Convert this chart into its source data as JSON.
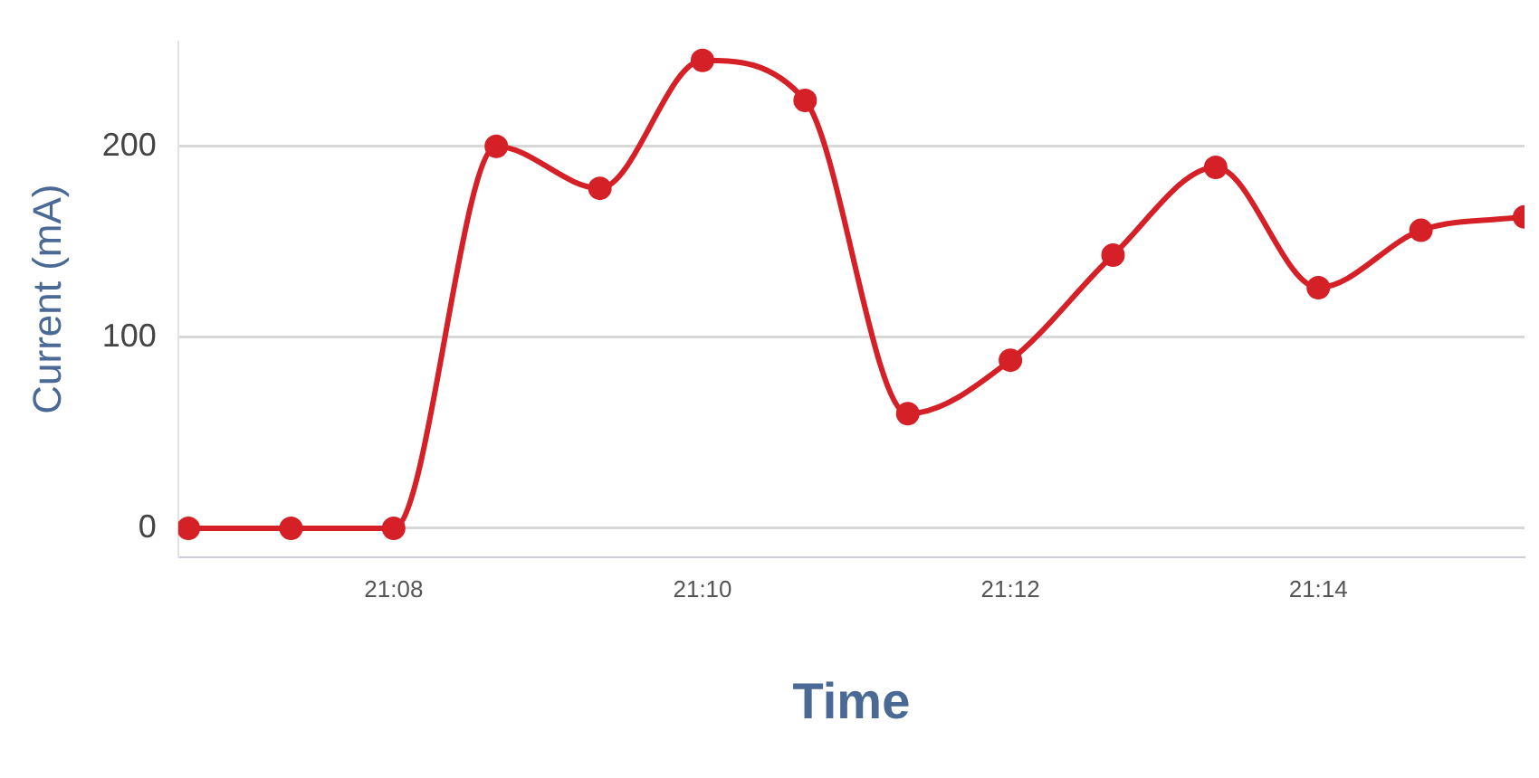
{
  "chart_data": {
    "type": "line",
    "xlabel": "Time",
    "ylabel": "Current (mA)",
    "x": [
      21.1111,
      21.1222,
      21.1333,
      21.1444,
      21.1556,
      21.1667,
      21.1778,
      21.1889,
      21.2,
      21.2111,
      21.2222,
      21.2333,
      21.2444,
      21.2556
    ],
    "series": [
      {
        "color": "#d42026",
        "values": [
          0,
          0,
          0,
          200,
          178,
          245,
          224,
          60,
          88,
          143,
          189,
          126,
          156,
          163
        ]
      }
    ],
    "xlim": [
      21.11,
      21.2556
    ],
    "xticks": [
      {
        "value": 21.1333,
        "label": "21:08"
      },
      {
        "value": 21.1667,
        "label": "21:10"
      },
      {
        "value": 21.2,
        "label": "21:12"
      },
      {
        "value": 21.2333,
        "label": "21:14"
      }
    ],
    "ylim": [
      -15,
      255
    ],
    "yticks": [
      0,
      100,
      200
    ],
    "grid": "y",
    "legend": false,
    "marker": "circle",
    "line_style": "solid"
  }
}
